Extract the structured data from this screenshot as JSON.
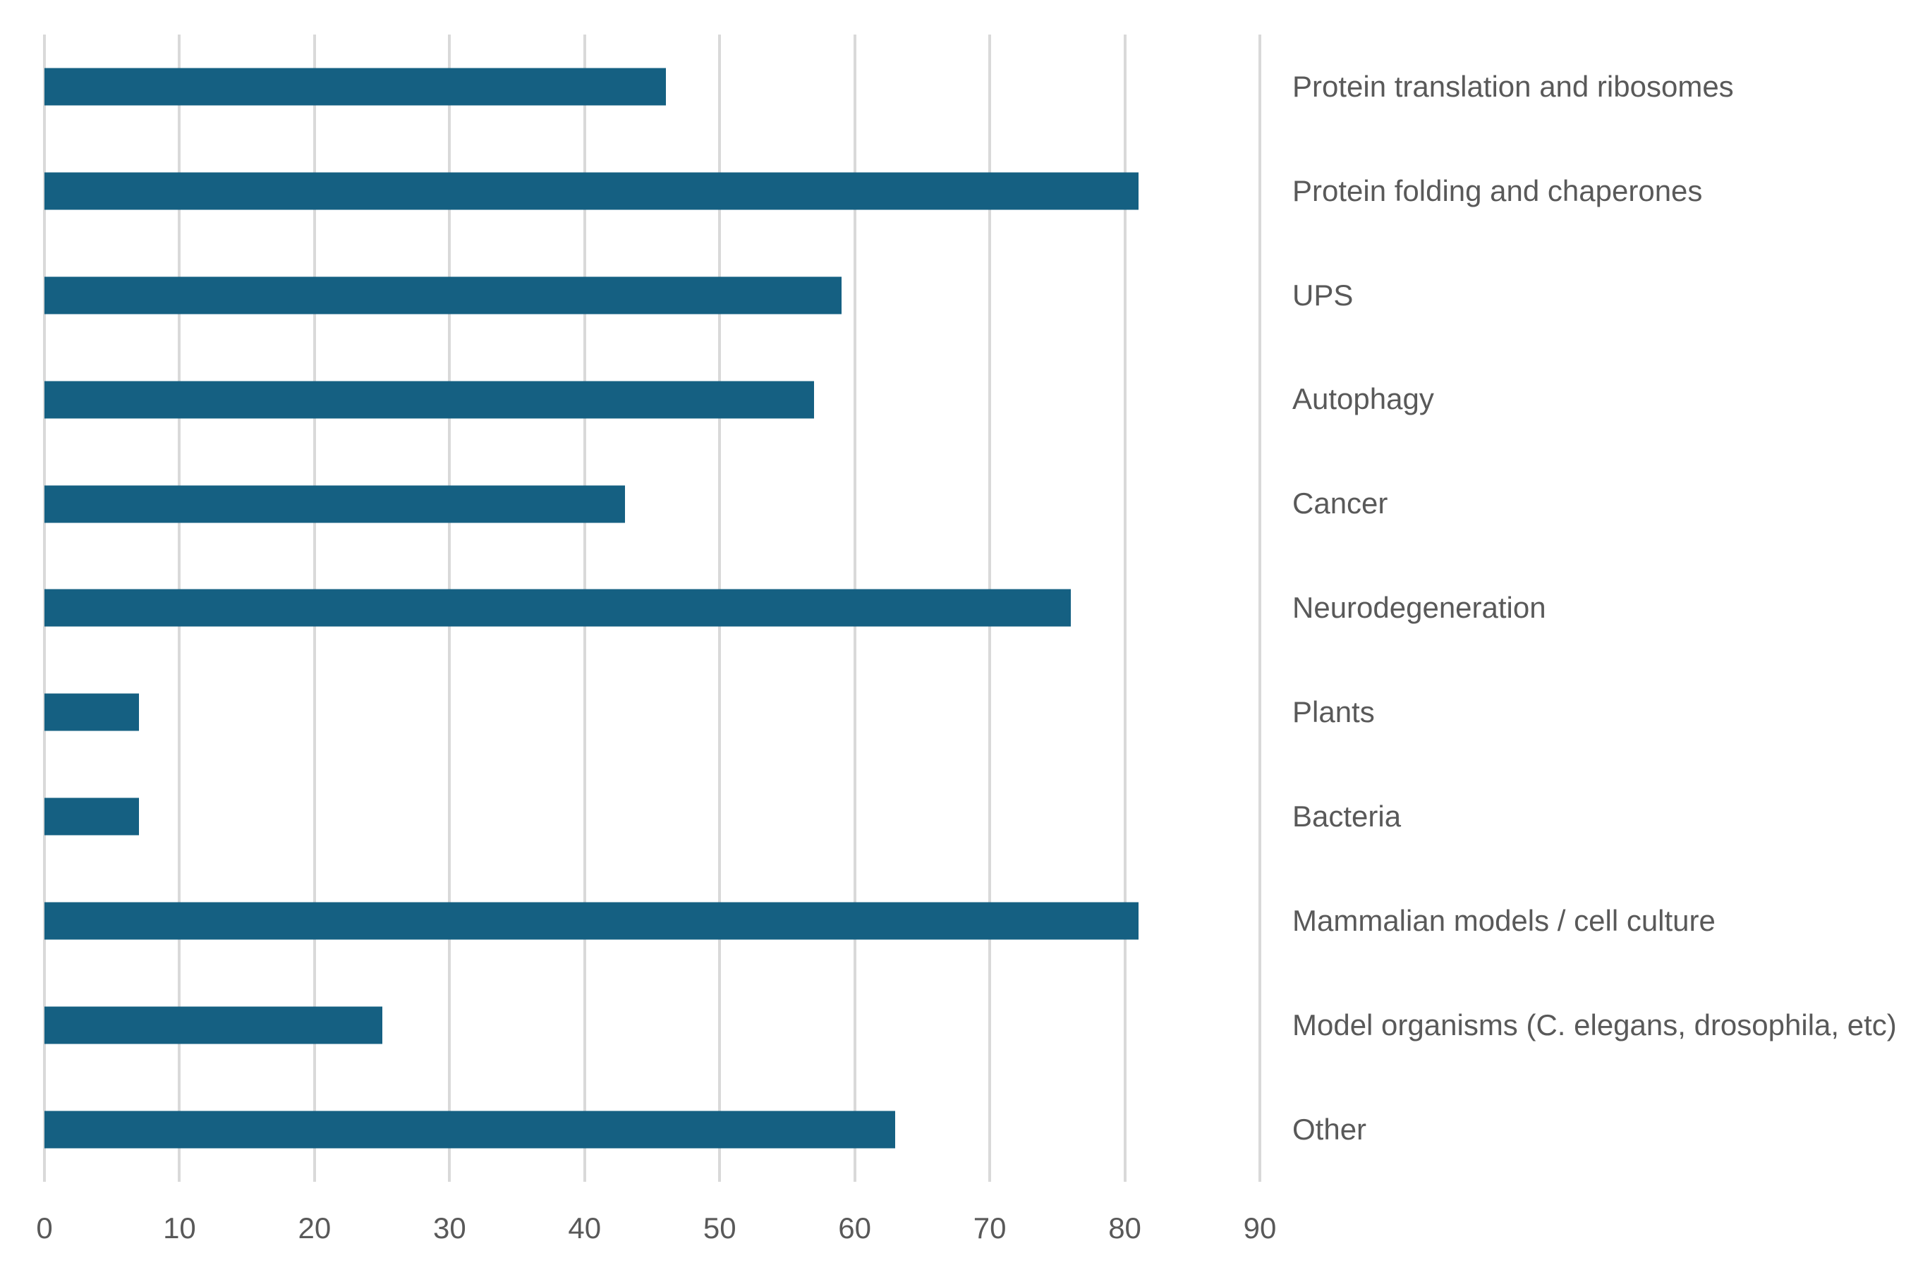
{
  "chart_data": {
    "type": "bar",
    "orientation": "horizontal",
    "title": "",
    "xlabel": "",
    "ylabel": "",
    "categories": [
      "Protein translation and ribosomes",
      "Protein folding and chaperones",
      "UPS",
      "Autophagy",
      "Cancer",
      "Neurodegeneration",
      "Plants",
      "Bacteria",
      "Mammalian models / cell culture",
      "Model organisms (C. elegans, drosophila, etc)",
      "Other"
    ],
    "values": [
      46,
      81,
      59,
      57,
      43,
      76,
      7,
      7,
      81,
      25,
      63
    ],
    "xlim": [
      0,
      90
    ],
    "x_ticks": [
      0,
      10,
      20,
      30,
      40,
      50,
      60,
      70,
      80,
      90
    ],
    "grid": "vertical-only",
    "legend": "none",
    "category_label_side": "right",
    "colors": {
      "bar": "#156082",
      "gridline": "#D9D9D9",
      "tick_label": "#595959",
      "category_label": "#595959",
      "background": "#FFFFFF"
    }
  }
}
